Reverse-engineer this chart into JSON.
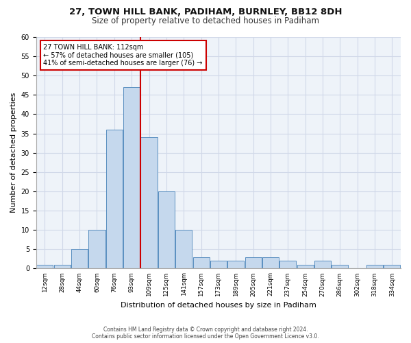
{
  "title1": "27, TOWN HILL BANK, PADIHAM, BURNLEY, BB12 8DH",
  "title2": "Size of property relative to detached houses in Padiham",
  "xlabel": "Distribution of detached houses by size in Padiham",
  "ylabel": "Number of detached properties",
  "bin_labels": [
    "12sqm",
    "28sqm",
    "44sqm",
    "60sqm",
    "76sqm",
    "93sqm",
    "109sqm",
    "125sqm",
    "141sqm",
    "157sqm",
    "173sqm",
    "189sqm",
    "205sqm",
    "221sqm",
    "237sqm",
    "254sqm",
    "270sqm",
    "286sqm",
    "302sqm",
    "318sqm",
    "334sqm"
  ],
  "values": [
    1,
    1,
    5,
    10,
    36,
    47,
    34,
    20,
    10,
    3,
    2,
    2,
    3,
    3,
    2,
    1,
    2,
    1,
    0,
    1,
    1
  ],
  "bar_color": "#c5d8ed",
  "bar_edge_color": "#5a8fc0",
  "highlight_line_color": "#cc0000",
  "annotation_text": "27 TOWN HILL BANK: 112sqm\n← 57% of detached houses are smaller (105)\n41% of semi-detached houses are larger (76) →",
  "annotation_box_color": "#ffffff",
  "annotation_box_edge_color": "#cc0000",
  "ylim": [
    0,
    60
  ],
  "yticks": [
    0,
    5,
    10,
    15,
    20,
    25,
    30,
    35,
    40,
    45,
    50,
    55,
    60
  ],
  "grid_color": "#d0d8e8",
  "background_color": "#eef3f9",
  "footer1": "Contains HM Land Registry data © Crown copyright and database right 2024.",
  "footer2": "Contains public sector information licensed under the Open Government Licence v3.0."
}
